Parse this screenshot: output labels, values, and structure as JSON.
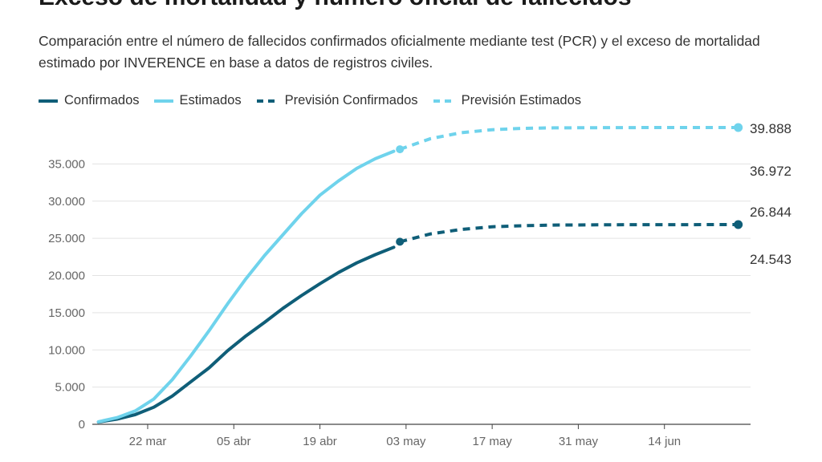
{
  "title": "Exceso de mortalidad y número oficial de fallecidos",
  "subtitle": "Comparación entre el número de fallecidos confirmados oficialmente mediante test (PCR) y el exceso de mortalidad estimado por INVERENCE en base a datos de registros civiles.",
  "colors": {
    "confirmados": "#0f5e78",
    "estimados": "#6fd3ec",
    "grid": "#e3e3e3",
    "axis": "#444444"
  },
  "chart_data": {
    "type": "line",
    "title": "Exceso de mortalidad y número oficial de fallecidos",
    "xlabel": "",
    "ylabel": "",
    "xlim": [
      -5,
      102
    ],
    "ylim": [
      0,
      40000
    ],
    "yticks": [
      0,
      5000,
      10000,
      15000,
      20000,
      25000,
      30000,
      35000
    ],
    "ytick_labels": [
      "0",
      "5.000",
      "10.000",
      "15.000",
      "20.000",
      "25.000",
      "30.000",
      "35.000"
    ],
    "xticks": [
      4,
      18,
      32,
      46,
      60,
      74,
      88
    ],
    "xtick_labels": [
      "22 mar",
      "05 abr",
      "19 abr",
      "03 may",
      "17 may",
      "31 may",
      "14 jun"
    ],
    "end_labels": [
      "39.888",
      "36.972",
      "26.844",
      "24.543"
    ],
    "series": [
      {
        "name": "Confirmados",
        "color_key": "confirmados",
        "dash": false,
        "x": [
          -4,
          -1,
          2,
          5,
          8,
          11,
          14,
          17,
          20,
          23,
          26,
          29,
          32,
          35,
          38,
          41,
          44
        ],
        "y": [
          300,
          700,
          1300,
          2300,
          3800,
          5700,
          7600,
          9900,
          11900,
          13700,
          15600,
          17300,
          18900,
          20400,
          21700,
          22800,
          23800
        ]
      },
      {
        "name": "Estimados",
        "color_key": "estimados",
        "dash": false,
        "x": [
          -4,
          -1,
          2,
          5,
          8,
          11,
          14,
          17,
          20,
          23,
          26,
          29,
          32,
          35,
          38,
          41,
          44
        ],
        "y": [
          350,
          900,
          1800,
          3400,
          6000,
          9200,
          12600,
          16200,
          19600,
          22700,
          25500,
          28300,
          30800,
          32700,
          34400,
          35700,
          36700
        ]
      },
      {
        "name": "Previsión Confirmados",
        "color_key": "confirmados",
        "dash": true,
        "x": [
          45,
          50,
          55,
          60,
          65,
          70,
          80,
          90,
          100
        ],
        "y": [
          24543,
          25600,
          26200,
          26550,
          26700,
          26780,
          26820,
          26840,
          26844
        ]
      },
      {
        "name": "Previsión Estimados",
        "color_key": "estimados",
        "dash": true,
        "x": [
          45,
          50,
          55,
          60,
          65,
          70,
          80,
          90,
          100
        ],
        "y": [
          36972,
          38400,
          39200,
          39600,
          39780,
          39850,
          39880,
          39888,
          39888
        ]
      }
    ]
  }
}
